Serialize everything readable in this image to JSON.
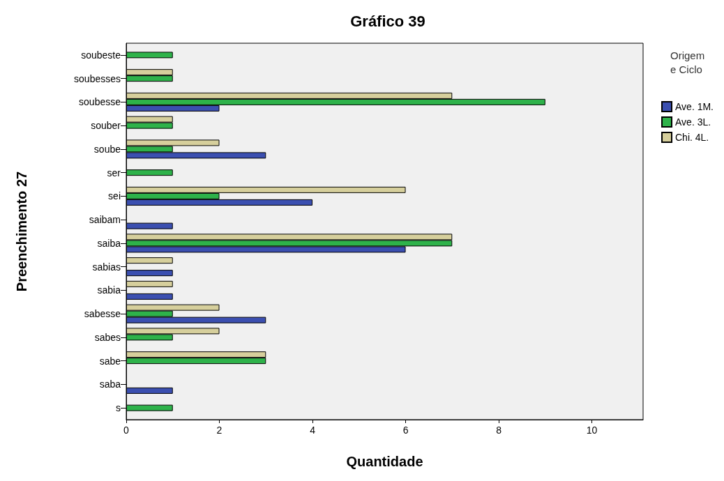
{
  "chart_data": {
    "type": "bar",
    "orientation": "horizontal",
    "title": "Gráfico 39",
    "xlabel": "Quantidade",
    "ylabel": "Preenchimento 27",
    "legend_title": "Origem e Ciclo",
    "legend": "right",
    "grid": false,
    "categories": [
      "soubeste",
      "soubesses",
      "soubesse",
      "souber",
      "soube",
      "ser",
      "sei",
      "saibam",
      "saiba",
      "sabias",
      "sabia",
      "sabesse",
      "sabes",
      "sabe",
      "saba",
      "s"
    ],
    "xlim": [
      0,
      11.1
    ],
    "xticks": [
      0,
      2,
      4,
      6,
      8,
      10
    ],
    "series": [
      {
        "name": "Ave. 1M.",
        "color": "#3b4fb0",
        "values": [
          null,
          null,
          2,
          null,
          3,
          null,
          4,
          1,
          6,
          1,
          1,
          3,
          null,
          null,
          1,
          null
        ]
      },
      {
        "name": "Ave. 3L.",
        "color": "#2eb24a",
        "values": [
          1,
          1,
          9,
          1,
          1,
          1,
          2,
          null,
          7,
          null,
          null,
          1,
          1,
          3,
          null,
          1
        ]
      },
      {
        "name": "Chi. 4L.",
        "color": "#d6cf9c",
        "values": [
          null,
          1,
          7,
          1,
          2,
          null,
          6,
          null,
          7,
          1,
          1,
          2,
          2,
          3,
          null,
          null
        ]
      }
    ]
  }
}
